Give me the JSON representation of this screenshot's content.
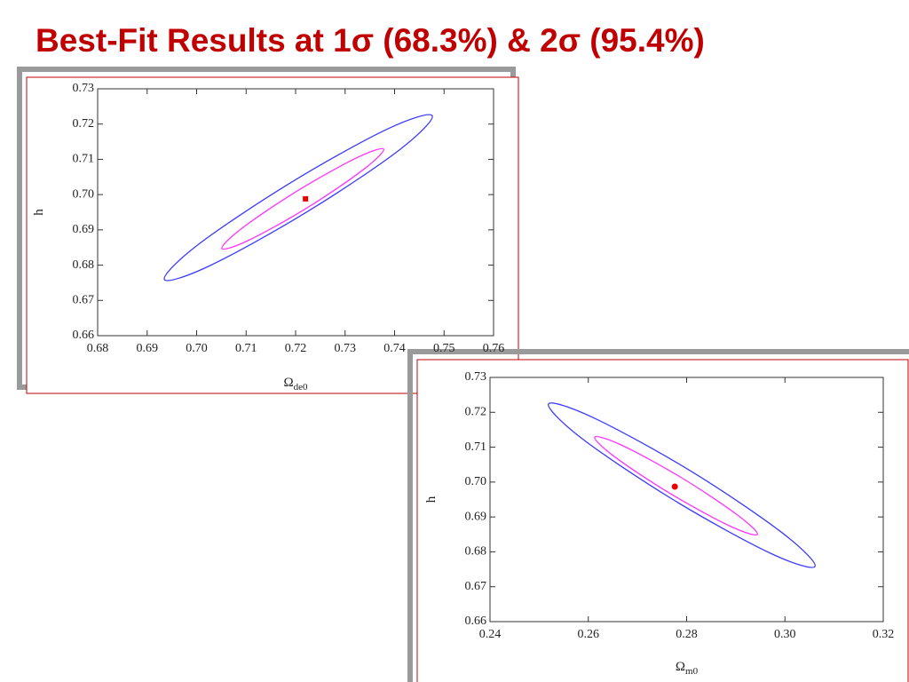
{
  "title": "Best-Fit Results at 1σ (68.3%) & 2σ (95.4%)",
  "chart_data": [
    {
      "type": "contour",
      "xlabel": "Ω",
      "xlabel_sub": "de0",
      "ylabel": "h",
      "xlim": [
        0.68,
        0.76
      ],
      "ylim": [
        0.66,
        0.73
      ],
      "xticks": [
        0.68,
        0.69,
        {
          "value": 0.7,
          "label": "0.70"
        },
        0.71,
        0.72,
        0.73,
        0.74,
        0.75,
        0.76
      ],
      "yticks": [
        0.66,
        0.67,
        0.68,
        0.69,
        {
          "value": 0.7,
          "label": "0.70"
        },
        0.71,
        0.72,
        0.73
      ],
      "series": [
        {
          "color": "#3b3bff",
          "x": [
            0.7476,
            0.741,
            0.7223,
            0.7026,
            0.6935,
            0.7001,
            0.7188,
            0.7384
          ],
          "values": [
            0.7224,
            0.7127,
            0.6951,
            0.6798,
            0.6759,
            0.6856,
            0.7032,
            0.7185
          ]
        },
        {
          "color": "#ff33ff",
          "x": [
            0.7378,
            0.7337,
            0.7225,
            0.7106,
            0.7051,
            0.7092,
            0.7204,
            0.7323
          ],
          "values": [
            0.7129,
            0.7071,
            0.6964,
            0.6871,
            0.6847,
            0.6905,
            0.7011,
            0.7104
          ]
        },
        {
          "color": "#ee0000",
          "marker": "square",
          "x": [
            0.722
          ],
          "values": [
            0.6988
          ]
        }
      ]
    },
    {
      "type": "contour",
      "xlabel": "Ω",
      "xlabel_sub": "m0",
      "ylabel": "h",
      "xlim": [
        0.24,
        0.32
      ],
      "ylim": [
        0.66,
        0.73
      ],
      "xticks": [
        0.24,
        0.26,
        0.28,
        {
          "value": 0.3,
          "label": "0.30"
        },
        0.32
      ],
      "yticks": [
        0.66,
        0.67,
        0.68,
        0.69,
        {
          "value": 0.7,
          "label": "0.70"
        },
        0.71,
        0.72,
        0.73
      ],
      "series": [
        {
          "color": "#3b3bff",
          "x": [
            0.3061,
            0.2994,
            0.2808,
            0.2611,
            0.2519,
            0.2586,
            0.2772,
            0.2969
          ],
          "values": [
            0.6758,
            0.6855,
            0.7032,
            0.7184,
            0.7224,
            0.7126,
            0.695,
            0.6797
          ]
        },
        {
          "color": "#ff33ff",
          "x": [
            0.2944,
            0.2902,
            0.2789,
            0.2669,
            0.2613,
            0.2654,
            0.2768,
            0.2888
          ],
          "values": [
            0.685,
            0.6907,
            0.7013,
            0.7105,
            0.7129,
            0.7072,
            0.6966,
            0.6874
          ]
        },
        {
          "color": "#ee0000",
          "marker": "circle",
          "x": [
            0.2776
          ],
          "values": [
            0.6987
          ]
        }
      ]
    }
  ]
}
